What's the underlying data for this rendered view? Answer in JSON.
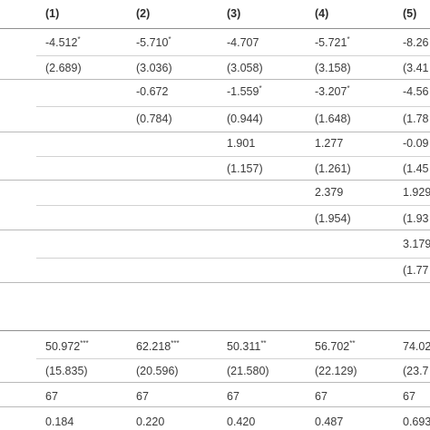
{
  "header": [
    "(1)",
    "(2)",
    "(3)",
    "(4)",
    "(5)"
  ],
  "rows": [
    [
      "-4.512*",
      "-5.710*",
      "-4.707",
      "-5.721*",
      "-8.26"
    ],
    [
      "(2.689)",
      "(3.036)",
      "(3.058)",
      "(3.158)",
      "(3.41"
    ],
    [
      "",
      "-0.672",
      "-1.559*",
      "-3.207*",
      "-4.56"
    ],
    [
      "",
      "(0.784)",
      "(0.944)",
      "(1.648)",
      "(1.78"
    ],
    [
      "",
      "",
      "1.901",
      "1.277",
      "-0.09"
    ],
    [
      "",
      "",
      "(1.157)",
      "(1.261)",
      "(1.45"
    ],
    [
      "",
      "",
      "",
      "2.379",
      "1.929"
    ],
    [
      "",
      "",
      "",
      "(1.954)",
      "(1.93"
    ],
    [
      "",
      "",
      "",
      "",
      "3.179"
    ],
    [
      "",
      "",
      "",
      "",
      "(1.77"
    ],
    [
      "50.972***",
      "62.218***",
      "50.311**",
      "56.702**",
      "74.02"
    ],
    [
      "(15.835)",
      "(20.596)",
      "(21.580)",
      "(22.129)",
      "(23.7"
    ],
    [
      "67",
      "67",
      "67",
      "67",
      "67"
    ],
    [
      "0.184",
      "0.220",
      "0.420",
      "0.487",
      "0.693"
    ]
  ]
}
